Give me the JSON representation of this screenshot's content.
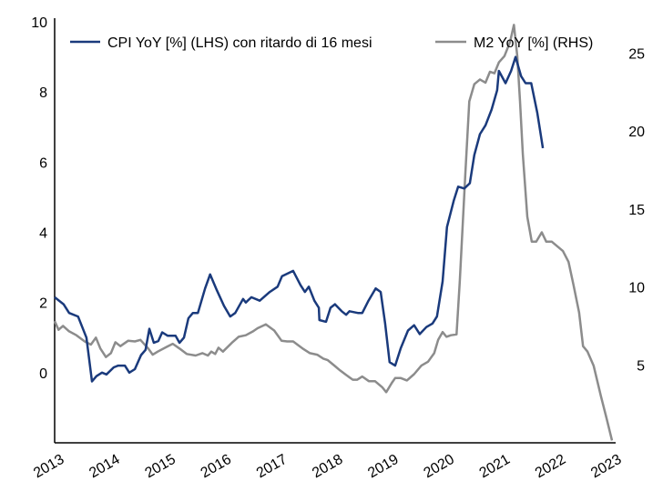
{
  "chart_data": {
    "type": "line",
    "title": "",
    "xlabel": "",
    "ylabel_left": "",
    "ylabel_right": "",
    "xlim": [
      2013,
      2023
    ],
    "ylim_left": [
      -2,
      10
    ],
    "ylim_right": [
      0,
      27
    ],
    "x_ticks": [
      "2013",
      "2014",
      "2015",
      "2016",
      "2017",
      "2018",
      "2019",
      "2020",
      "2021",
      "2022",
      "2023"
    ],
    "y_ticks_left": [
      "0",
      "2",
      "4",
      "6",
      "8",
      "10"
    ],
    "y_ticks_right": [
      "5",
      "10",
      "15",
      "20",
      "25"
    ],
    "grid": false,
    "legend_position": "top",
    "colors": {
      "cpi": "#1a3a7c",
      "m2": "#8c8c8c"
    },
    "series": [
      {
        "name": "CPI YoY [%] (LHS) con ritardo di 16 mesi",
        "axis": "left",
        "x": [
          2013.0,
          2013.16,
          2013.26,
          2013.42,
          2013.57,
          2013.67,
          2013.75,
          2013.85,
          2013.93,
          2014.06,
          2014.14,
          2014.26,
          2014.34,
          2014.44,
          2014.55,
          2014.63,
          2014.7,
          2014.78,
          2014.86,
          2014.93,
          2015.03,
          2015.17,
          2015.24,
          2015.32,
          2015.4,
          2015.48,
          2015.57,
          2015.7,
          2015.79,
          2015.91,
          2016.04,
          2016.15,
          2016.24,
          2016.38,
          2016.43,
          2016.53,
          2016.68,
          2016.86,
          2017.0,
          2017.08,
          2017.28,
          2017.41,
          2017.49,
          2017.56,
          2017.66,
          2017.74,
          2017.75,
          2017.87,
          2017.95,
          2018.03,
          2018.15,
          2018.23,
          2018.29,
          2018.44,
          2018.52,
          2018.63,
          2018.76,
          2018.85,
          2018.93,
          2019.01,
          2019.11,
          2019.21,
          2019.34,
          2019.45,
          2019.55,
          2019.67,
          2019.78,
          2019.86,
          2019.96,
          2020.04,
          2020.16,
          2020.24,
          2020.35,
          2020.45,
          2020.53,
          2020.63,
          2020.73,
          2020.84,
          2020.94,
          2020.97,
          2021.09,
          2021.19,
          2021.27,
          2021.37,
          2021.45,
          2021.55,
          2021.66,
          2021.76
        ],
        "values": [
          2.15,
          1.95,
          1.7,
          1.6,
          1.0,
          -0.25,
          -0.1,
          0,
          -0.05,
          0.15,
          0.2,
          0.2,
          0,
          0.1,
          0.5,
          0.65,
          1.25,
          0.85,
          0.9,
          1.15,
          1.05,
          1.05,
          0.85,
          1.0,
          1.55,
          1.7,
          1.7,
          2.4,
          2.8,
          2.35,
          1.9,
          1.6,
          1.7,
          2.1,
          2.0,
          2.15,
          2.05,
          2.3,
          2.45,
          2.75,
          2.9,
          2.5,
          2.3,
          2.45,
          2.05,
          1.85,
          1.5,
          1.45,
          1.85,
          1.95,
          1.75,
          1.65,
          1.75,
          1.7,
          1.7,
          2.05,
          2.4,
          2.3,
          1.4,
          0.3,
          0.2,
          0.7,
          1.2,
          1.35,
          1.1,
          1.3,
          1.4,
          1.6,
          2.6,
          4.15,
          4.9,
          5.3,
          5.25,
          5.4,
          6.2,
          6.8,
          7.05,
          7.5,
          8.05,
          8.6,
          8.25,
          8.6,
          9.0,
          8.45,
          8.25,
          8.25,
          7.4,
          6.4
        ]
      },
      {
        "name": "M2 YoY [%] (RHS)",
        "axis": "right",
        "x": [
          2013.0,
          2013.07,
          2013.15,
          2013.26,
          2013.39,
          2013.54,
          2013.65,
          2013.74,
          2013.82,
          2013.92,
          2014.01,
          2014.09,
          2014.18,
          2014.32,
          2014.44,
          2014.54,
          2014.68,
          2014.76,
          2014.85,
          2015.01,
          2015.12,
          2015.24,
          2015.37,
          2015.53,
          2015.65,
          2015.75,
          2015.81,
          2015.88,
          2015.94,
          2016.02,
          2016.19,
          2016.3,
          2016.43,
          2016.56,
          2016.64,
          2016.79,
          2016.94,
          2017.07,
          2017.17,
          2017.28,
          2017.45,
          2017.58,
          2017.71,
          2017.82,
          2017.9,
          2018.02,
          2018.12,
          2018.23,
          2018.35,
          2018.43,
          2018.52,
          2018.64,
          2018.75,
          2018.88,
          2018.95,
          2019.05,
          2019.11,
          2019.21,
          2019.32,
          2019.45,
          2019.58,
          2019.7,
          2019.81,
          2019.88,
          2019.96,
          2020.03,
          2020.11,
          2020.21,
          2020.27,
          2020.37,
          2020.44,
          2020.53,
          2020.63,
          2020.73,
          2020.81,
          2020.89,
          2020.97,
          2021.07,
          2021.17,
          2021.24,
          2021.3,
          2021.35,
          2021.4,
          2021.48,
          2021.56,
          2021.64,
          2021.74,
          2021.82,
          2021.92,
          2022.02,
          2022.12,
          2022.22,
          2022.31,
          2022.41,
          2022.48,
          2022.56,
          2022.67,
          2022.8,
          2022.9,
          2023.0
        ],
        "values": [
          7.8,
          7.25,
          7.5,
          7.15,
          6.9,
          6.5,
          6.3,
          6.75,
          6.05,
          5.5,
          5.75,
          6.45,
          6.2,
          6.55,
          6.5,
          6.6,
          6.05,
          5.65,
          5.85,
          6.15,
          6.35,
          6.05,
          5.7,
          5.6,
          5.75,
          5.6,
          5.85,
          5.7,
          6.1,
          5.85,
          6.45,
          6.8,
          6.9,
          7.15,
          7.35,
          7.6,
          7.2,
          6.55,
          6.5,
          6.5,
          6.05,
          5.75,
          5.65,
          5.4,
          5.3,
          4.95,
          4.65,
          4.35,
          4.05,
          4.05,
          4.25,
          3.95,
          3.95,
          3.55,
          3.25,
          3.85,
          4.15,
          4.15,
          4.0,
          4.4,
          4.95,
          5.2,
          5.75,
          6.6,
          7.1,
          6.8,
          6.9,
          6.95,
          10.4,
          17.3,
          21.9,
          23.0,
          23.3,
          23.1,
          23.8,
          23.7,
          24.4,
          24.8,
          25.7,
          26.8,
          24.8,
          21.9,
          18.5,
          14.5,
          12.9,
          12.9,
          13.5,
          12.9,
          12.9,
          12.6,
          12.3,
          11.6,
          10.1,
          8.35,
          6.2,
          5.85,
          4.95,
          3.0,
          1.6,
          0.15
        ]
      }
    ]
  }
}
